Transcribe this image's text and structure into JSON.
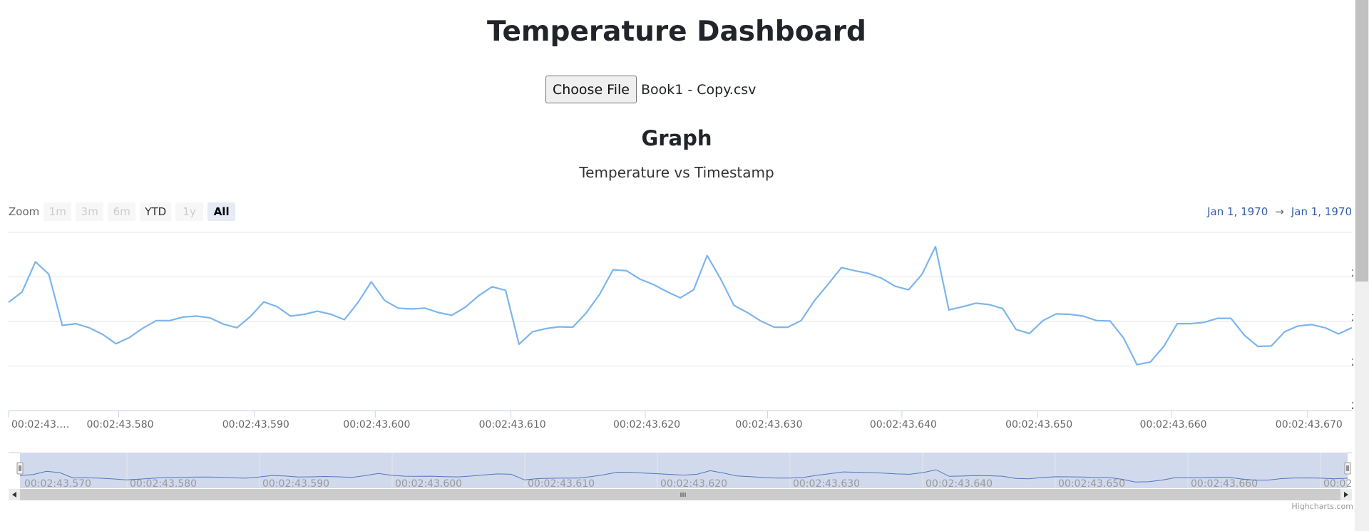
{
  "page": {
    "title": "Temperature Dashboard",
    "file_button_label": "Choose File",
    "file_name": "Book1 - Copy.csv",
    "section_heading": "Graph"
  },
  "range_selector": {
    "zoom_label": "Zoom",
    "buttons": [
      {
        "label": "1m",
        "state": "disabled"
      },
      {
        "label": "3m",
        "state": "disabled"
      },
      {
        "label": "6m",
        "state": "disabled"
      },
      {
        "label": "YTD",
        "state": "enabled"
      },
      {
        "label": "1y",
        "state": "disabled"
      },
      {
        "label": "All",
        "state": "selected"
      }
    ],
    "from_date": "Jan 1, 1970",
    "arrow": "→",
    "to_date": "Jan 1, 1970"
  },
  "colors": {
    "series": "#7cb5ec",
    "navigator_mask": "rgba(102,133,194,0.3)",
    "grid": "#e6e6e6",
    "date_text": "#335cad"
  },
  "chart_data": {
    "type": "line",
    "title": "Temperature vs Timestamp",
    "xlabel": "",
    "ylabel": "",
    "grid": true,
    "x_tick_labels": [
      "00:02:43.…",
      "00:02:43.580",
      "00:02:43.590",
      "00:02:43.600",
      "00:02:43.610",
      "00:02:43.620",
      "00:02:43.630",
      "00:02:43.640",
      "00:02:43.650",
      "00:02:43.660",
      "00:02:43.670"
    ],
    "y_tick_labels": [
      "2",
      "2",
      "2",
      "2",
      "2"
    ],
    "navigator_tick_labels": [
      "00:02:43.570",
      "00:02:43.580",
      "00:02:43.590",
      "00:02:43.600",
      "00:02:43.610",
      "00:02:43.620",
      "00:02:43.630",
      "00:02:43.640",
      "00:02:43.650",
      "00:02:43.660",
      "00:02:43.670"
    ],
    "ylim": [
      0,
      4
    ],
    "series": [
      {
        "x_ms_offsets": [
          0,
          1,
          2,
          3,
          4,
          5,
          6,
          7,
          8,
          9,
          10,
          11,
          12,
          13,
          14,
          15,
          16,
          17,
          18,
          19,
          20,
          21,
          22,
          23,
          24,
          25,
          26,
          27,
          28,
          29,
          30,
          31,
          32,
          33,
          34,
          35,
          36,
          37,
          38,
          39,
          40,
          41,
          42,
          43,
          44,
          45,
          46,
          47,
          48,
          49,
          50,
          51,
          52,
          53,
          54,
          55,
          56,
          57,
          58,
          59,
          60,
          61,
          62,
          63,
          64,
          65,
          66,
          67,
          68,
          69,
          70,
          71,
          72,
          73,
          74,
          75,
          76,
          77,
          78,
          79,
          80,
          81,
          82,
          83,
          84,
          85,
          86,
          87,
          88,
          89,
          90,
          91,
          92,
          93,
          94,
          95,
          96,
          97,
          98,
          99,
          100
        ],
        "values": [
          2.43,
          2.66,
          3.34,
          3.06,
          1.91,
          1.95,
          1.86,
          1.71,
          1.5,
          1.64,
          1.85,
          2.02,
          2.02,
          2.1,
          2.12,
          2.08,
          1.94,
          1.86,
          2.11,
          2.44,
          2.33,
          2.12,
          2.16,
          2.23,
          2.16,
          2.04,
          2.42,
          2.89,
          2.47,
          2.3,
          2.28,
          2.3,
          2.2,
          2.14,
          2.32,
          2.58,
          2.78,
          2.7,
          1.49,
          1.77,
          1.84,
          1.88,
          1.87,
          2.19,
          2.61,
          3.16,
          3.14,
          2.95,
          2.83,
          2.67,
          2.53,
          2.71,
          3.48,
          2.96,
          2.36,
          2.2,
          2.01,
          1.87,
          1.87,
          2.02,
          2.47,
          2.83,
          3.21,
          3.14,
          3.08,
          2.97,
          2.79,
          2.71,
          3.06,
          3.68,
          2.26,
          2.33,
          2.41,
          2.38,
          2.29,
          1.82,
          1.73,
          2.02,
          2.17,
          2.16,
          2.12,
          2.02,
          2.01,
          1.63,
          1.03,
          1.09,
          1.44,
          1.95,
          1.95,
          1.98,
          2.07,
          2.07,
          1.69,
          1.44,
          1.45,
          1.77,
          1.9,
          1.93,
          1.86,
          1.72,
          1.86
        ]
      }
    ]
  },
  "credits": "Highcharts.com"
}
